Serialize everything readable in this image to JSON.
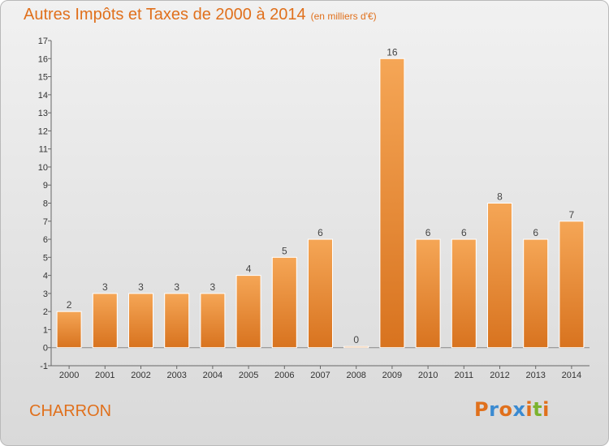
{
  "header": {
    "title": "Autres Impôts et Taxes de 2000 à 2014",
    "unit": "(en milliers d'€)"
  },
  "commune": "CHARRON",
  "logo": {
    "text": "Proxiti",
    "colors": [
      "#e0701c",
      "#3a8ad1",
      "#e0701c",
      "#3a8ad1",
      "#e0701c",
      "#7bb32e",
      "#e0701c"
    ]
  },
  "colors": {
    "bar_top": "#f5a656",
    "bar_bottom": "#d8731f",
    "accent": "#e0701c"
  },
  "chart_data": {
    "type": "bar",
    "categories": [
      "2000",
      "2001",
      "2002",
      "2003",
      "2004",
      "2005",
      "2006",
      "2007",
      "2008",
      "2009",
      "2010",
      "2011",
      "2012",
      "2013",
      "2014"
    ],
    "values": [
      2,
      3,
      3,
      3,
      3,
      4,
      5,
      6,
      0,
      16,
      6,
      6,
      8,
      6,
      7
    ],
    "ylim": [
      -1,
      17
    ],
    "yticks": [
      -1,
      0,
      1,
      2,
      3,
      4,
      5,
      6,
      7,
      8,
      9,
      10,
      11,
      12,
      13,
      14,
      15,
      16,
      17
    ],
    "grid": false,
    "legend": "none"
  }
}
